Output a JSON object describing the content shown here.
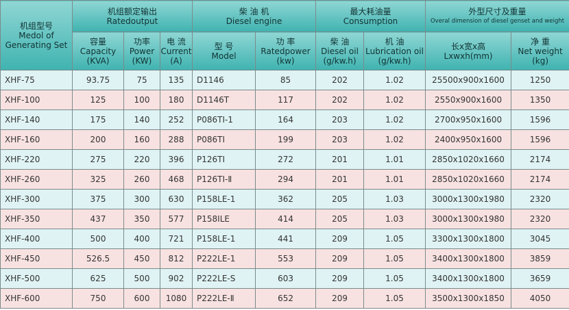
{
  "header": {
    "model": {
      "zh": "机组型号",
      "en": "Medol of Generating Set"
    },
    "groups": [
      {
        "zh": "机组额定输出",
        "en": "Ratedoutput"
      },
      {
        "zh": "柴 油 机",
        "en": "Diesel engine"
      },
      {
        "zh": "最大耗油量",
        "en": "Consumption"
      },
      {
        "zh": "外型尺寸及重量",
        "en": "Overal dimension of diesel genset and weight"
      }
    ],
    "columns": [
      {
        "zh": "容量",
        "en": "Capacity",
        "unit": "(KVA)"
      },
      {
        "zh": "功率",
        "en": "Power",
        "unit": "(KW)"
      },
      {
        "zh": "电 流",
        "en": "Current",
        "unit": "(A)"
      },
      {
        "zh": "型 号",
        "en": "Model"
      },
      {
        "zh": "功 率",
        "en": "Ratedpower",
        "unit": "(kw)"
      },
      {
        "zh": "柴 油",
        "en": "Diesel oil",
        "unit": "(g/kw.h)"
      },
      {
        "zh": "机 油",
        "en": "Lubrication oil",
        "unit": "(g/kw.h)"
      },
      {
        "zh": "长x宽x高",
        "en": "Lxwxh(mm)"
      },
      {
        "zh": "净 重",
        "en": "Net weight",
        "unit": "(kg)"
      }
    ]
  },
  "table": {
    "rows": [
      [
        "XHF-75",
        "93.75",
        "75",
        "135",
        "D1146",
        "85",
        "202",
        "1.02",
        "25500x900x1600",
        "1250"
      ],
      [
        "XHF-100",
        "125",
        "100",
        "180",
        "D1146T",
        "117",
        "202",
        "1.02",
        "2550x900x1600",
        "1350"
      ],
      [
        "XHF-140",
        "175",
        "140",
        "252",
        "P086TI-1",
        "164",
        "203",
        "1.02",
        "2700x950x1600",
        "1596"
      ],
      [
        "XHF-160",
        "200",
        "160",
        "288",
        "P086TI",
        "199",
        "203",
        "1.02",
        "2400x950x1600",
        "1596"
      ],
      [
        "XHF-220",
        "275",
        "220",
        "396",
        "P126TI",
        "272",
        "201",
        "1.01",
        "2850x1020x1660",
        "2174"
      ],
      [
        "XHF-260",
        "325",
        "260",
        "468",
        "P126TI-Ⅱ",
        "294",
        "201",
        "1.01",
        "2850x1020x1660",
        "2174"
      ],
      [
        "XHF-300",
        "375",
        "300",
        "630",
        "P158LE-1",
        "362",
        "205",
        "1.03",
        "3000x1300x1980",
        "2320"
      ],
      [
        "XHF-350",
        "437",
        "350",
        "577",
        "P158ILE",
        "414",
        "205",
        "1.03",
        "3000x1300x1980",
        "2320"
      ],
      [
        "XHF-400",
        "500",
        "400",
        "721",
        "P158LE-1",
        "441",
        "209",
        "1.05",
        "3300x1300x1800",
        "3045"
      ],
      [
        "XHF-450",
        "526.5",
        "450",
        "812",
        "P222LE-1",
        "553",
        "209",
        "1.05",
        "3400x1300x1800",
        "3859"
      ],
      [
        "XHF-500",
        "625",
        "500",
        "902",
        "P222LE-S",
        "603",
        "209",
        "1.05",
        "3400x1300x1800",
        "3659"
      ],
      [
        "XHF-600",
        "750",
        "600",
        "1080",
        "P222LE-Ⅱ",
        "652",
        "209",
        "1.05",
        "3500x1300x1850",
        "4050"
      ]
    ]
  }
}
